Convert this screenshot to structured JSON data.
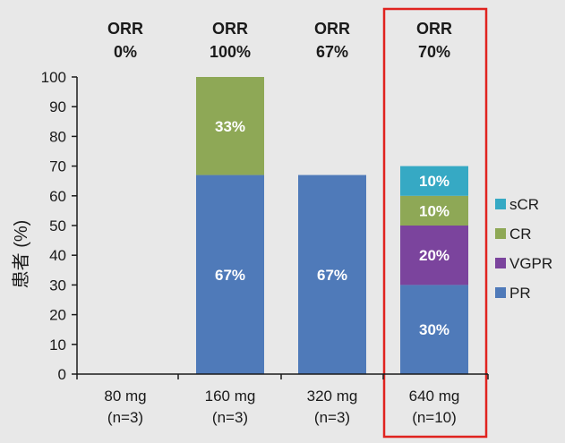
{
  "chart_data": {
    "type": "bar",
    "stacked": true,
    "categories": [
      {
        "line1": "80 mg",
        "line2": "(n=3)"
      },
      {
        "line1": "160 mg",
        "line2": "(n=3)"
      },
      {
        "line1": "320 mg",
        "line2": "(n=3)"
      },
      {
        "line1": "640 mg",
        "line2": "(n=10)"
      }
    ],
    "orr": [
      {
        "label": "ORR",
        "value": "0%"
      },
      {
        "label": "ORR",
        "value": "100%"
      },
      {
        "label": "ORR",
        "value": "67%"
      },
      {
        "label": "ORR",
        "value": "70%"
      }
    ],
    "series": [
      {
        "name": "PR",
        "color": "#4f7ab9",
        "values": [
          0,
          67,
          67,
          30
        ],
        "labels": [
          "",
          "67%",
          "67%",
          "30%"
        ]
      },
      {
        "name": "VGPR",
        "color": "#7b449d",
        "values": [
          0,
          0,
          0,
          20
        ],
        "labels": [
          "",
          "",
          "",
          "20%"
        ]
      },
      {
        "name": "CR",
        "color": "#8ea856",
        "values": [
          0,
          33,
          0,
          10
        ],
        "labels": [
          "",
          "33%",
          "",
          "10%"
        ]
      },
      {
        "name": "sCR",
        "color": "#36a9c4",
        "values": [
          0,
          0,
          0,
          10
        ],
        "labels": [
          "",
          "",
          "",
          "10%"
        ]
      }
    ],
    "legend_order": [
      "sCR",
      "CR",
      "VGPR",
      "PR"
    ],
    "legend_position": "right",
    "ylabel": "患者 (%)",
    "ylim": [
      0,
      100
    ],
    "yticks": [
      0,
      10,
      20,
      30,
      40,
      50,
      60,
      70,
      80,
      90,
      100
    ],
    "highlight": {
      "category_index": 3,
      "color": "#e0231f"
    },
    "grid": false
  }
}
